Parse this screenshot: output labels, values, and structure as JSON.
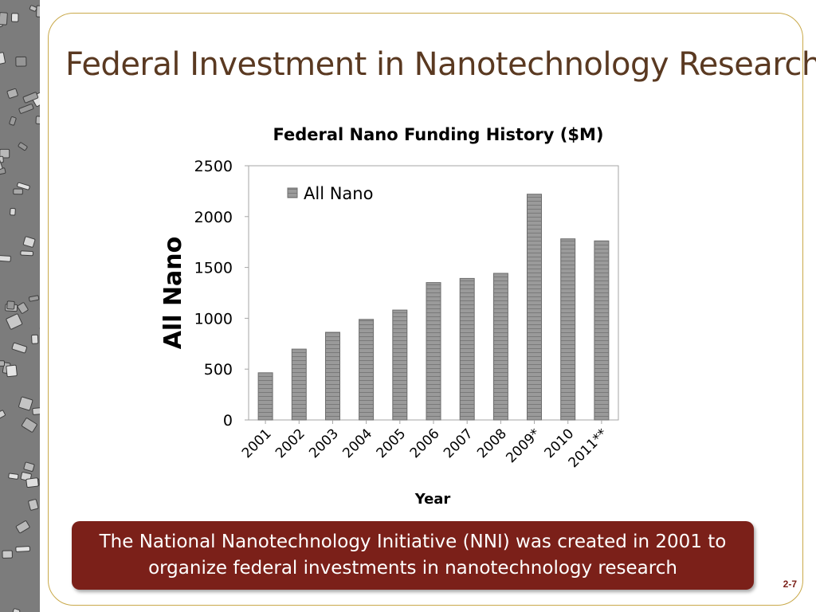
{
  "slide": {
    "title": "Federal Investment in Nanotechnology Research",
    "callout": "The National Nanotechnology Initiative (NNI) was created in 2001 to organize federal investments in nanotechnology research",
    "page_number": "2-7"
  },
  "colors": {
    "bar_fill": "#9a9a9a",
    "bar_stroke": "#6d6d6d",
    "title": "#5a3921",
    "callout_bg": "#7b2019",
    "frame": "#c9a94a"
  },
  "chart_data": {
    "type": "bar",
    "title": "Federal Nano Funding History ($M)",
    "xlabel": "Year",
    "ylabel": "All Nano",
    "categories": [
      "2001",
      "2002",
      "2003",
      "2004",
      "2005",
      "2006",
      "2007",
      "2008",
      "2009*",
      "2010",
      "2011**"
    ],
    "series": [
      {
        "name": "All Nano",
        "values": [
          464,
          697,
          862,
          989,
          1081,
          1351,
          1392,
          1442,
          2220,
          1781,
          1761
        ]
      }
    ],
    "ylim": [
      0,
      2500
    ],
    "yticks": [
      0,
      500,
      1000,
      1500,
      2000,
      2500
    ],
    "legend": "top-left",
    "grid": false
  }
}
